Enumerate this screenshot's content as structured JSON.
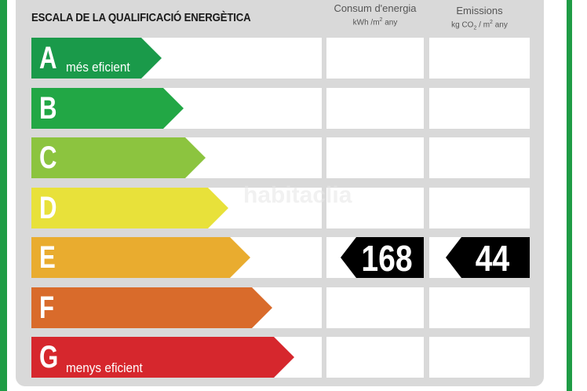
{
  "title": "ESCALA DE LA QUALIFICACIÓ ENERGÈTICA",
  "columns": {
    "consumption": {
      "label": "Consum d'energia",
      "unit_prefix": "kWh /m",
      "unit_sup": "2",
      "unit_suffix": " any"
    },
    "emissions": {
      "label": "Emissions",
      "unit_prefix": "kg CO",
      "unit_sub": "2",
      "unit_mid": " / m",
      "unit_sup": "2",
      "unit_suffix": " any"
    }
  },
  "classes": [
    {
      "letter": "A",
      "note": "més eficient",
      "color": "#1a9a4a"
    },
    {
      "letter": "B",
      "note": "",
      "color": "#22a745"
    },
    {
      "letter": "C",
      "note": "",
      "color": "#8cc43f"
    },
    {
      "letter": "D",
      "note": "",
      "color": "#e8e13a"
    },
    {
      "letter": "E",
      "note": "",
      "color": "#e9ac2f"
    },
    {
      "letter": "F",
      "note": "",
      "color": "#d96b2b"
    },
    {
      "letter": "G",
      "note": "menys eficient",
      "color": "#d6272d"
    }
  ],
  "rating": {
    "class": "E",
    "consumption_value": "168",
    "emissions_value": "44"
  },
  "watermark": "habitaclia"
}
